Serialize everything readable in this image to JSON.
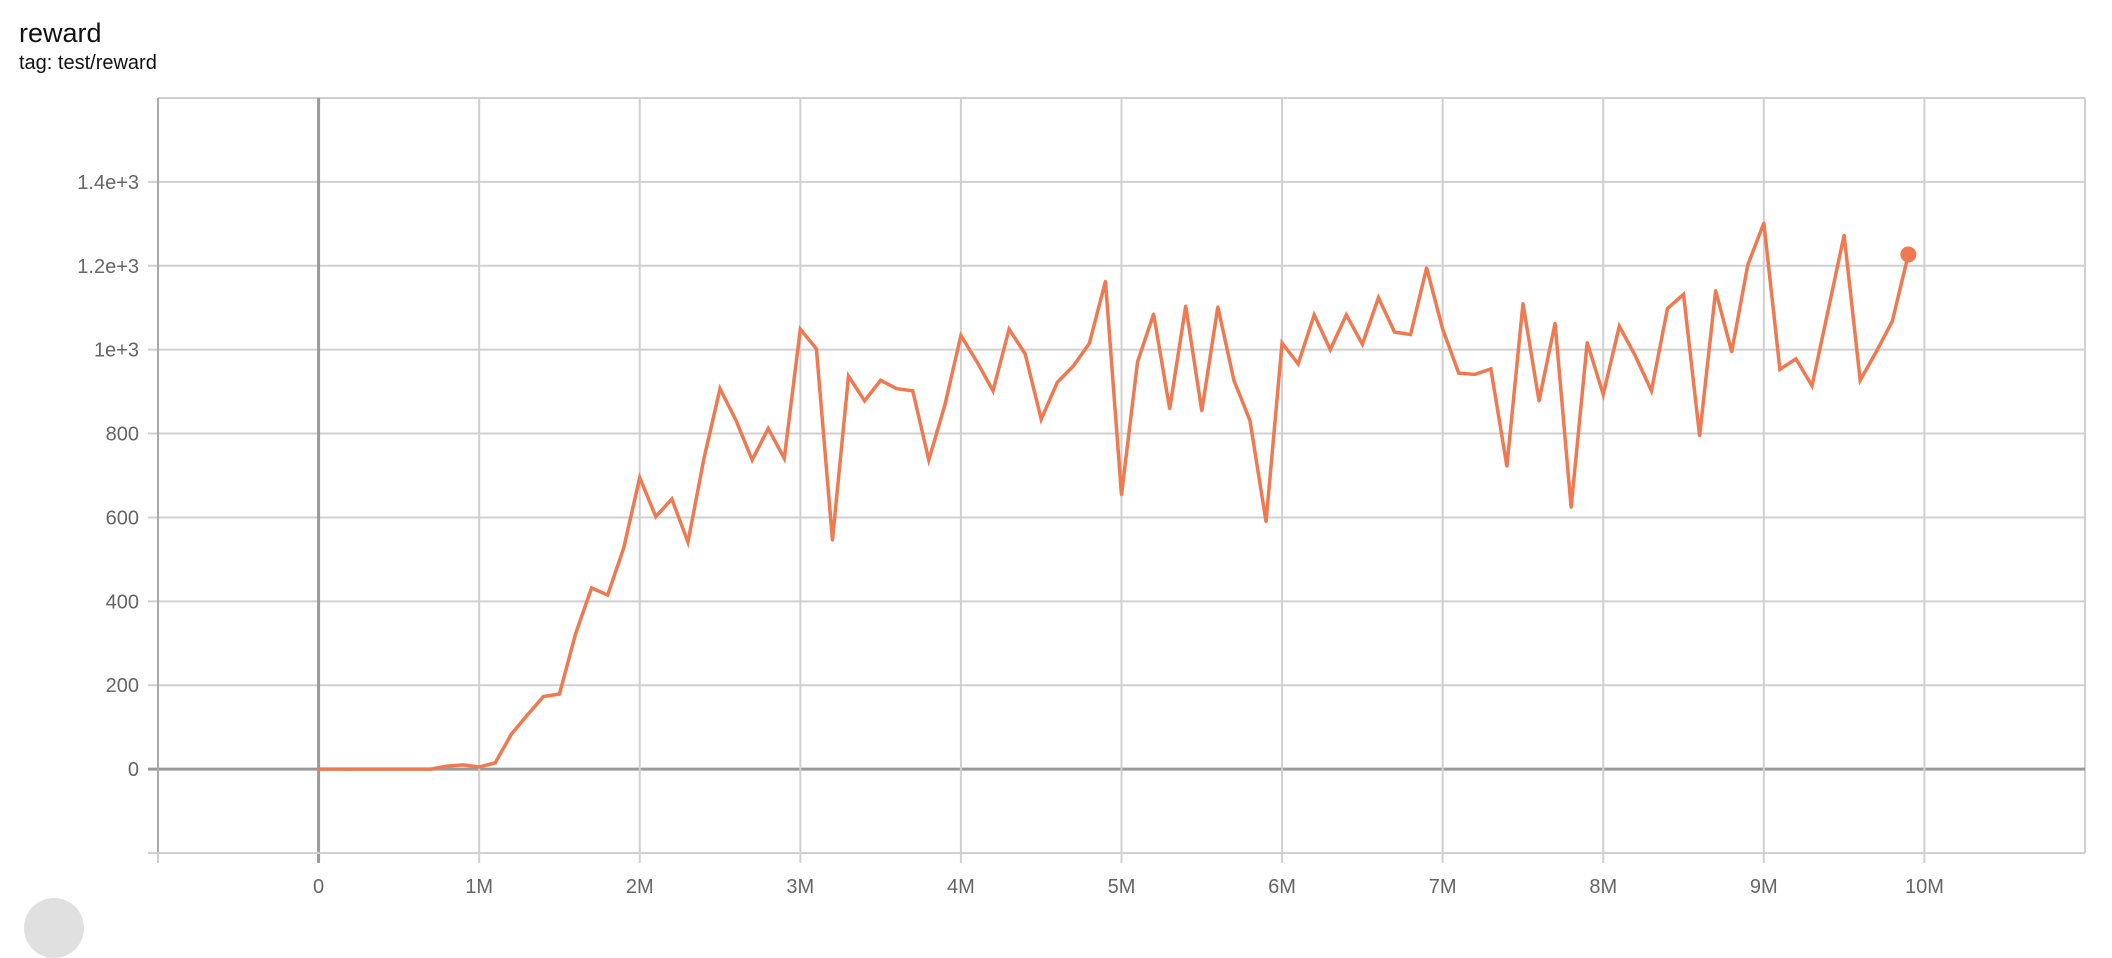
{
  "header": {
    "title": "reward",
    "subtitle": "tag: test/reward"
  },
  "colors": {
    "series": "#ef7a51",
    "grid": "#d0d0d0",
    "zero_axis": "#9a9a9a"
  },
  "chart_data": {
    "type": "line",
    "title": "reward",
    "subtitle": "tag: test/reward",
    "xlabel": "",
    "ylabel": "",
    "xlim": [
      -1000000,
      11000000
    ],
    "ylim": [
      -200,
      1600
    ],
    "grid": true,
    "x_ticks": [
      0,
      1000000,
      2000000,
      3000000,
      4000000,
      5000000,
      6000000,
      7000000,
      8000000,
      9000000,
      10000000
    ],
    "x_tick_labels": [
      "0",
      "1M",
      "2M",
      "3M",
      "4M",
      "5M",
      "6M",
      "7M",
      "8M",
      "9M",
      "10M"
    ],
    "y_ticks": [
      0,
      200,
      400,
      600,
      800,
      1000,
      1200,
      1400
    ],
    "y_tick_labels": [
      "0",
      "200",
      "400",
      "600",
      "800",
      "1e+3",
      "1.2e+3",
      "1.4e+3"
    ],
    "series": [
      {
        "color": "#ef7a51",
        "x_start": 0,
        "x_step": 100000,
        "values": [
          0,
          0,
          0,
          0,
          0,
          0,
          0,
          0,
          7,
          10,
          5,
          15,
          83,
          129,
          173,
          179,
          322,
          432,
          415,
          527,
          695,
          602,
          644,
          541,
          741,
          907,
          831,
          737,
          812,
          741,
          1049,
          1002,
          546,
          937,
          878,
          927,
          907,
          902,
          737,
          868,
          1034,
          971,
          902,
          1049,
          990,
          834,
          922,
          961,
          1015,
          1163,
          654,
          971,
          1085,
          859,
          1104,
          854,
          1102,
          927,
          831,
          590,
          1016,
          966,
          1083,
          1000,
          1083,
          1013,
          1124,
          1042,
          1036,
          1195,
          1049,
          944,
          941,
          954,
          722,
          1110,
          878,
          1063,
          624,
          1017,
          893,
          1056,
          985,
          902,
          1098,
          1132,
          795,
          1141,
          995,
          1202,
          1302,
          953,
          978,
          914,
          1093,
          1273,
          927,
          995,
          1068,
          1227
        ],
        "last_point_marker": true
      }
    ]
  }
}
